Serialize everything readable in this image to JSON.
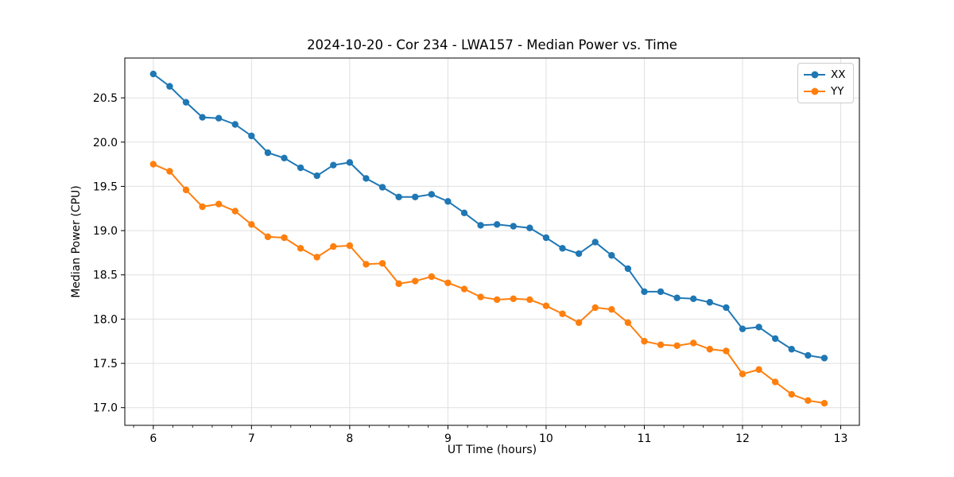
{
  "chart_data": {
    "type": "line",
    "title": "2024-10-20 - Cor 234 - LWA157 - Median Power vs. Time",
    "xlabel": "UT Time (hours)",
    "ylabel": "Median Power (CPU)",
    "x": [
      6.0,
      6.1667,
      6.3333,
      6.5,
      6.6667,
      6.8333,
      7.0,
      7.1667,
      7.3333,
      7.5,
      7.6667,
      7.8333,
      8.0,
      8.1667,
      8.3333,
      8.5,
      8.6667,
      8.8333,
      9.0,
      9.1667,
      9.3333,
      9.5,
      9.6667,
      9.8333,
      10.0,
      10.1667,
      10.3333,
      10.5,
      10.6667,
      10.8333,
      11.0,
      11.1667,
      11.3333,
      11.5,
      11.6667,
      11.8333,
      12.0,
      12.1667,
      12.3333,
      12.5,
      12.6667,
      12.8333
    ],
    "series": [
      {
        "name": "XX",
        "color": "#1f77b4",
        "marker": "circle",
        "values": [
          20.77,
          20.63,
          20.45,
          20.28,
          20.27,
          20.2,
          20.07,
          19.88,
          19.82,
          19.71,
          19.62,
          19.74,
          19.77,
          19.59,
          19.49,
          19.38,
          19.38,
          19.41,
          19.33,
          19.2,
          19.06,
          19.07,
          19.05,
          19.03,
          18.92,
          18.8,
          18.74,
          18.87,
          18.72,
          18.57,
          18.31,
          18.31,
          18.24,
          18.23,
          18.19,
          18.13,
          17.89,
          17.91,
          17.78,
          17.66,
          17.59,
          17.56
        ]
      },
      {
        "name": "YY",
        "color": "#ff7f0e",
        "marker": "circle",
        "values": [
          19.75,
          19.67,
          19.46,
          19.27,
          19.3,
          19.22,
          19.07,
          18.93,
          18.92,
          18.8,
          18.7,
          18.82,
          18.83,
          18.62,
          18.63,
          18.4,
          18.43,
          18.48,
          18.41,
          18.34,
          18.25,
          18.22,
          18.23,
          18.22,
          18.15,
          18.06,
          17.96,
          18.13,
          18.11,
          17.96,
          17.75,
          17.71,
          17.7,
          17.73,
          17.66,
          17.64,
          17.38,
          17.43,
          17.29,
          17.15,
          17.08,
          17.05
        ]
      }
    ],
    "xlim": [
      5.71,
      13.19
    ],
    "ylim": [
      16.8,
      20.95
    ],
    "xticks": [
      6,
      7,
      8,
      9,
      10,
      11,
      12,
      13
    ],
    "xtick_labels": [
      "6",
      "7",
      "8",
      "9",
      "10",
      "11",
      "12",
      "13"
    ],
    "yticks": [
      17.0,
      17.5,
      18.0,
      18.5,
      19.0,
      19.5,
      20.0,
      20.5
    ],
    "ytick_labels": [
      "17.0",
      "17.5",
      "18.0",
      "18.5",
      "19.0",
      "19.5",
      "20.0",
      "20.5"
    ],
    "x_minor_tick_step": 0.2,
    "grid": true,
    "legend": {
      "position": "upper right",
      "entries": [
        "XX",
        "YY"
      ]
    },
    "colors": {
      "grid": "#e0e0e0",
      "spine": "#000000",
      "text": "#000000",
      "background": "#ffffff",
      "legend_border": "#cccccc"
    }
  }
}
